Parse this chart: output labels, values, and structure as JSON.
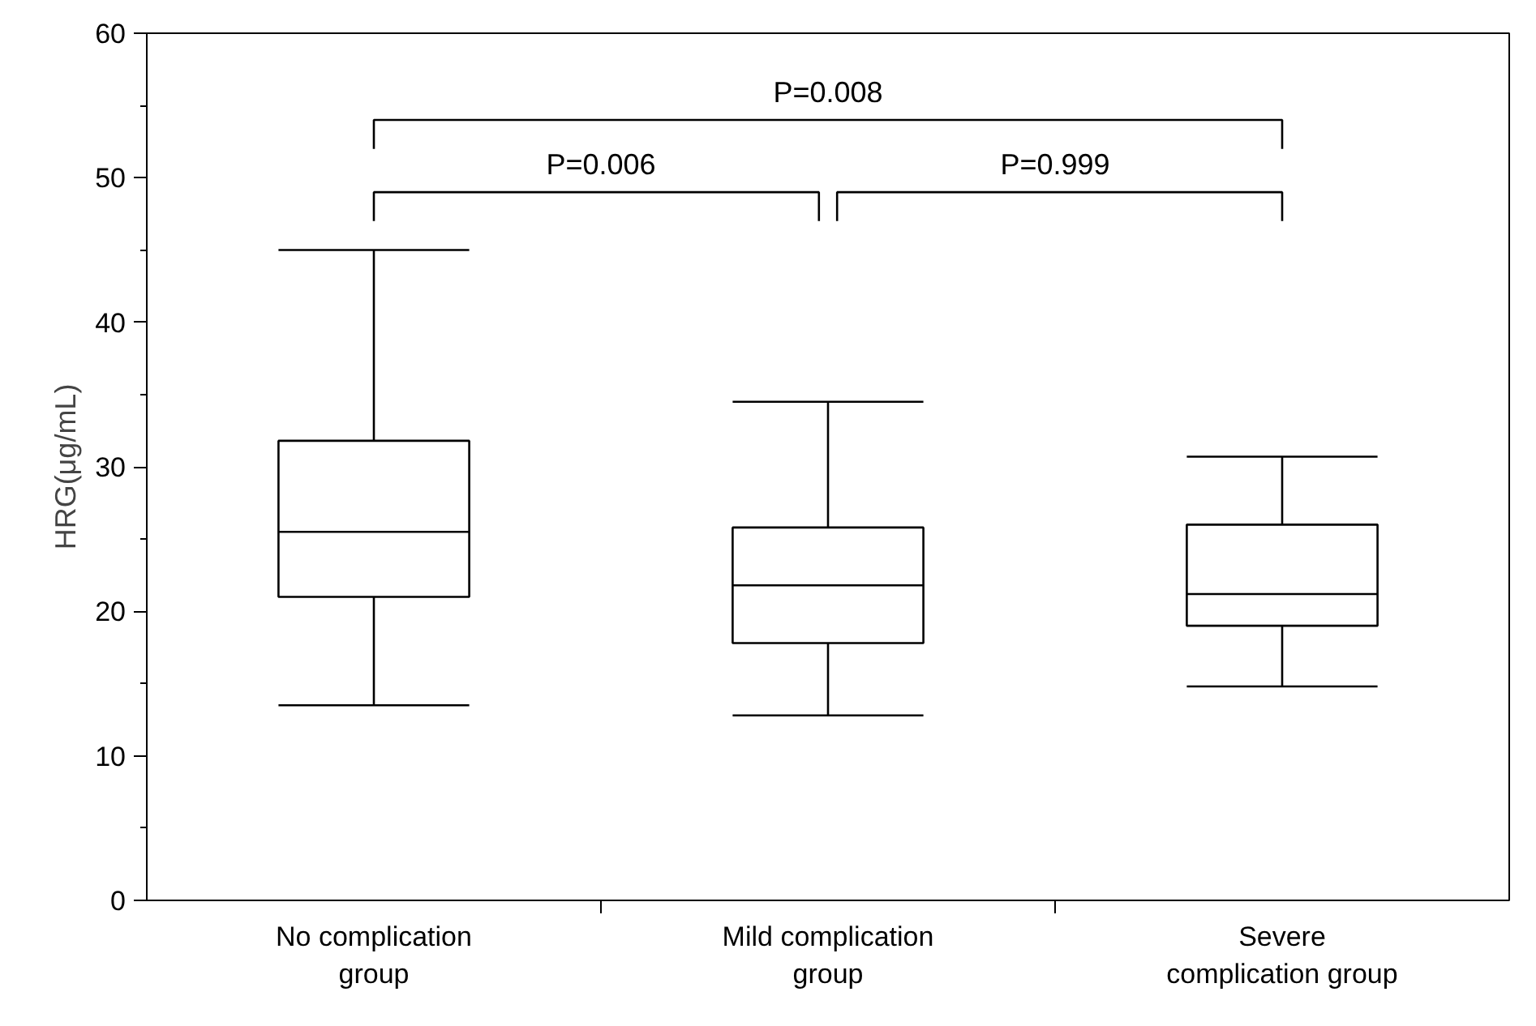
{
  "chart_data": {
    "type": "box",
    "ylabel": "HRG(μg/mL)",
    "categories": [
      "No complication group",
      "Mild complication group",
      "Severe complication group"
    ],
    "boxes": [
      {
        "low": 13.5,
        "q1": 21.0,
        "median": 25.5,
        "q3": 31.8,
        "high": 45.0
      },
      {
        "low": 12.8,
        "q1": 17.8,
        "median": 21.8,
        "q3": 25.8,
        "high": 34.5
      },
      {
        "low": 14.8,
        "q1": 19.0,
        "median": 21.2,
        "q3": 26.0,
        "high": 30.7
      }
    ],
    "ylim": [
      0,
      60
    ],
    "yticks": [
      0,
      10,
      20,
      30,
      40,
      50,
      60
    ],
    "grid": false,
    "annotations": [
      "P=0.008",
      "P=0.006",
      "P=0.999"
    ]
  }
}
